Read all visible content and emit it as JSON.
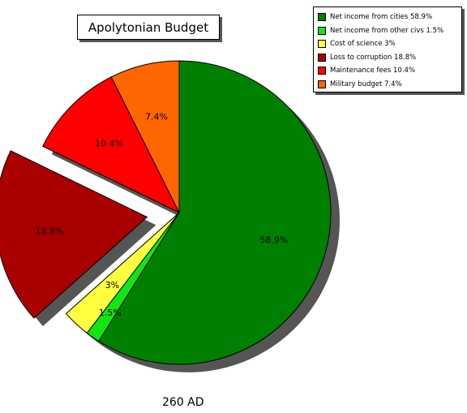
{
  "chart_data": {
    "type": "pie",
    "title": "Apolytonian Budget",
    "footer": "260 AD",
    "slices": [
      {
        "legend": "Net income from cities  58.9%",
        "label": "58.9%",
        "value": 58.9,
        "color": "#008000",
        "exploded": false
      },
      {
        "legend": "Net income from other civs  1.5%",
        "label": "1.5%",
        "value": 1.5,
        "color": "#11e611",
        "exploded": false
      },
      {
        "legend": "Cost of science  3%",
        "label": "3%",
        "value": 3.0,
        "color": "#ffff40",
        "exploded": false
      },
      {
        "legend": "Loss to corruption  18.8%",
        "label": "18.8%",
        "value": 18.8,
        "color": "#aa0000",
        "exploded": true
      },
      {
        "legend": "Maintenance fees  10.4%",
        "label": "10.4%",
        "value": 10.4,
        "color": "#ff0000",
        "exploded": false
      },
      {
        "legend": "Military budget  7.4%",
        "label": "7.4%",
        "value": 7.4,
        "color": "#ff6600",
        "exploded": false
      }
    ],
    "legend_position": "top-right"
  }
}
